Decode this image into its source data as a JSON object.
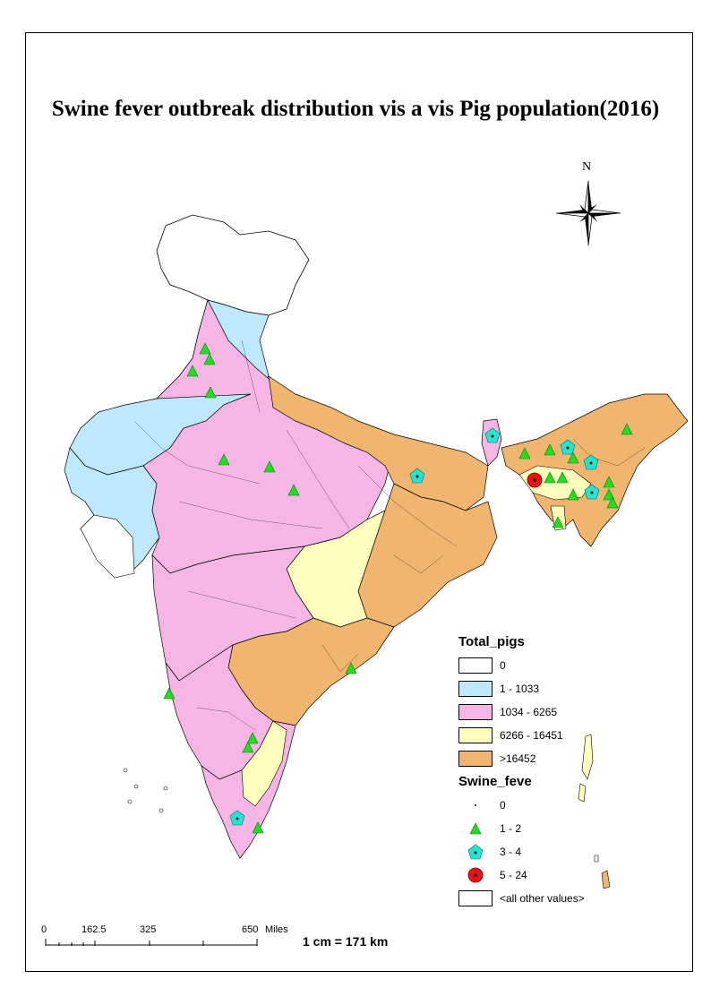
{
  "title": "Swine fever outbreak distribution vis a vis Pig population(2016)",
  "north_label": "N",
  "legend": {
    "total_pigs": {
      "heading": "Total_pigs",
      "classes": [
        {
          "label": "0",
          "color": "#ffffff"
        },
        {
          "label": "1 - 1033",
          "color": "#bee8ff"
        },
        {
          "label": "1034 - 6265",
          "color": "#f5b6e6"
        },
        {
          "label": "6266 - 16451",
          "color": "#ffffbe"
        },
        {
          "label": ">16452",
          "color": "#f0b66f"
        }
      ]
    },
    "swine_fever": {
      "heading": "Swine_feve",
      "classes": [
        {
          "label": "0",
          "symbol": "dot"
        },
        {
          "label": "1 - 2",
          "symbol": "green-triangle",
          "color": "#22dd22"
        },
        {
          "label": "3 - 4",
          "symbol": "cyan-pentagon",
          "color": "#22e6d0"
        },
        {
          "label": "5 - 24",
          "symbol": "red-circle",
          "color": "#ee1111"
        }
      ],
      "other_label": "<all other values>"
    }
  },
  "scale": {
    "ticks": [
      "0",
      "162.5",
      "325",
      "650"
    ],
    "unit": "Miles",
    "ratio": "1 cm = 171 km"
  }
}
